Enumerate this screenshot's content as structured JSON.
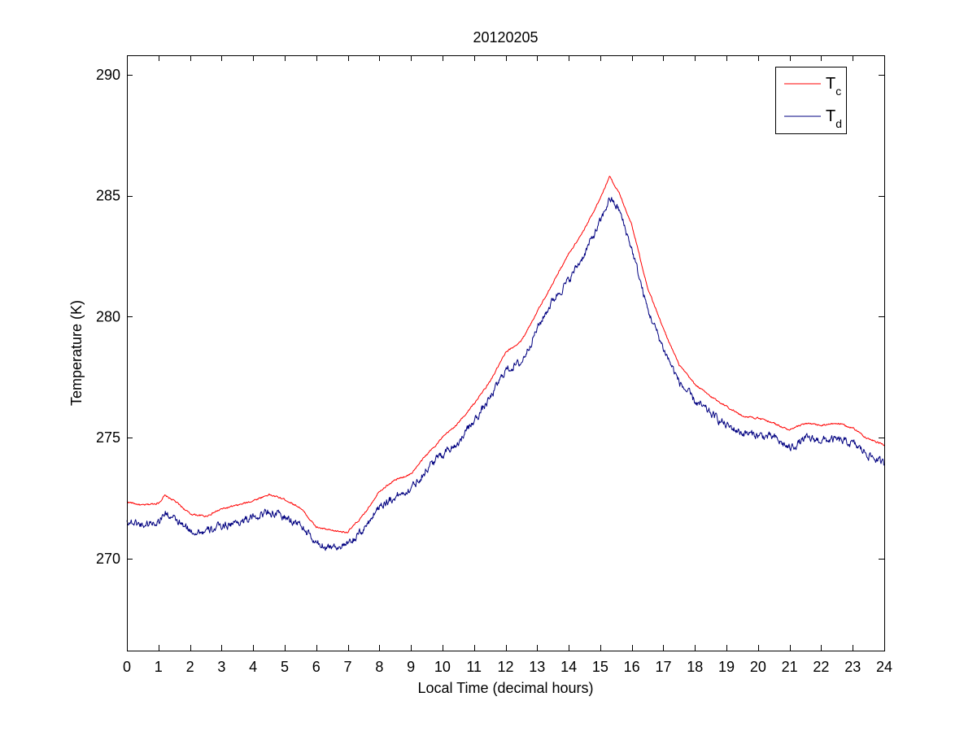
{
  "chart_data": {
    "type": "line",
    "title": "20120205",
    "xlabel": "Local Time (decimal hours)",
    "ylabel": "Temperature (K)",
    "xlim": [
      0,
      24
    ],
    "ylim": [
      266.2,
      290.8
    ],
    "x_ticks": [
      0,
      1,
      2,
      3,
      4,
      5,
      6,
      7,
      8,
      9,
      10,
      11,
      12,
      13,
      14,
      15,
      16,
      17,
      18,
      19,
      20,
      21,
      22,
      23,
      24
    ],
    "y_ticks": [
      270,
      275,
      280,
      285,
      290
    ],
    "grid": false,
    "legend_position": "top-right",
    "series": [
      {
        "name": "T_c",
        "legend_main": "T",
        "legend_sub": "c",
        "color": "#ff0000",
        "noise": 0.03,
        "x": [
          0,
          0.5,
          1,
          1.2,
          1.5,
          2,
          2.5,
          3,
          3.5,
          4,
          4.5,
          5,
          5.5,
          6,
          6.5,
          7,
          7.5,
          8,
          8.5,
          9,
          9.5,
          10,
          10.5,
          11,
          11.5,
          12,
          12.5,
          13,
          13.5,
          14,
          14.5,
          15,
          15.3,
          15.6,
          16,
          16.5,
          17,
          17.5,
          18,
          18.5,
          19,
          19.5,
          20,
          20.5,
          21,
          21.5,
          22,
          22.5,
          23,
          23.5,
          24
        ],
        "values": [
          272.35,
          272.2,
          272.3,
          272.6,
          272.4,
          271.85,
          271.75,
          272.05,
          272.2,
          272.4,
          272.65,
          272.45,
          272.1,
          271.3,
          271.15,
          271.1,
          271.8,
          272.8,
          273.25,
          273.5,
          274.3,
          275.0,
          275.6,
          276.4,
          277.3,
          278.5,
          279.0,
          280.2,
          281.4,
          282.6,
          283.6,
          284.9,
          285.8,
          285.1,
          283.8,
          281.2,
          279.5,
          278.0,
          277.2,
          276.7,
          276.3,
          275.9,
          275.8,
          275.6,
          275.3,
          275.6,
          275.5,
          275.6,
          275.4,
          274.95,
          274.7
        ]
      },
      {
        "name": "T_d",
        "legend_main": "T",
        "legend_sub": "d",
        "color": "#000080",
        "noise": 0.13,
        "x": [
          0,
          0.5,
          1,
          1.2,
          1.5,
          2,
          2.5,
          3,
          3.5,
          4,
          4.5,
          5,
          5.5,
          6,
          6.5,
          7,
          7.5,
          8,
          8.5,
          9,
          9.5,
          10,
          10.5,
          11,
          11.5,
          12,
          12.5,
          13,
          13.5,
          14,
          14.5,
          15,
          15.3,
          15.6,
          16,
          16.5,
          17,
          17.5,
          18,
          18.5,
          19,
          19.5,
          20,
          20.5,
          21,
          21.5,
          22,
          22.5,
          23,
          23.5,
          24
        ],
        "values": [
          271.55,
          271.4,
          271.55,
          271.9,
          271.6,
          271.15,
          271.1,
          271.35,
          271.5,
          271.7,
          271.95,
          271.7,
          271.4,
          270.6,
          270.5,
          270.55,
          271.2,
          272.2,
          272.55,
          272.9,
          273.7,
          274.35,
          274.8,
          275.7,
          276.6,
          277.8,
          278.1,
          279.5,
          280.7,
          281.5,
          282.6,
          283.9,
          284.9,
          284.4,
          282.8,
          280.3,
          278.7,
          277.3,
          276.5,
          276.0,
          275.5,
          275.2,
          275.1,
          275.0,
          274.55,
          274.95,
          274.9,
          274.9,
          274.75,
          274.3,
          273.9
        ]
      }
    ]
  }
}
